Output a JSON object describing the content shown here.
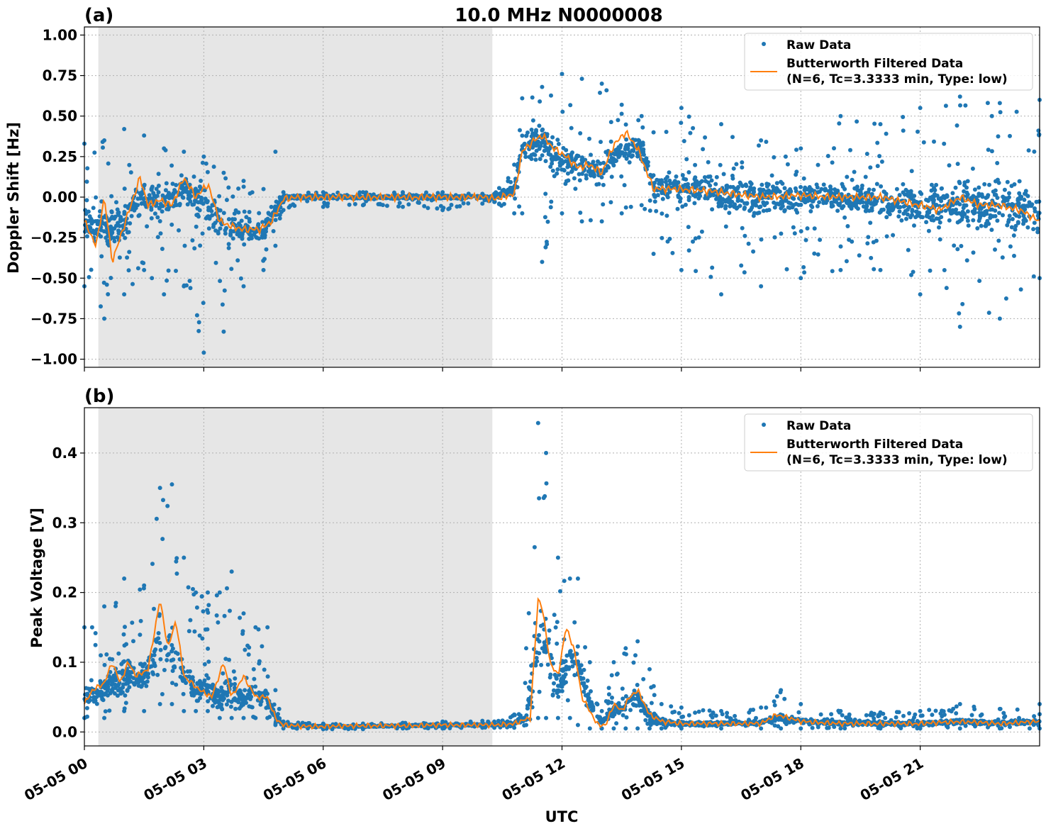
{
  "figure": {
    "title": "10.0 MHz N0000008",
    "xlabel": "UTC",
    "colors": {
      "raw": "#1f77b4",
      "filtered": "#ff7f0e",
      "shade": "#e6e6e6",
      "grid": "#b0b0b0"
    },
    "night_shading_hours": [
      0.35,
      10.25
    ],
    "x_range_hours": [
      0,
      24
    ],
    "x_ticks": [
      {
        "hour": 0,
        "label": "05-05 00"
      },
      {
        "hour": 3,
        "label": "05-05 03"
      },
      {
        "hour": 6,
        "label": "05-05 06"
      },
      {
        "hour": 9,
        "label": "05-05 09"
      },
      {
        "hour": 12,
        "label": "05-05 12"
      },
      {
        "hour": 15,
        "label": "05-05 15"
      },
      {
        "hour": 18,
        "label": "05-05 18"
      },
      {
        "hour": 21,
        "label": "05-05 21"
      }
    ],
    "legend": {
      "raw": "Raw Data",
      "filtered_line1": "Butterworth Filtered Data",
      "filtered_line2": "(N=6, Tc=3.3333 min, Type: low)",
      "placement": "upper right"
    }
  },
  "chart_data": [
    {
      "panel_label": "(a)",
      "type": "scatter",
      "ylabel": "Doppler Shift [Hz]",
      "ylim": [
        -1.05,
        1.05
      ],
      "yticks": [
        "−1.00",
        "−0.75",
        "−0.50",
        "−0.25",
        "0.00",
        "0.25",
        "0.50",
        "0.75",
        "1.00"
      ],
      "ytick_values": [
        -1.0,
        -0.75,
        -0.5,
        -0.25,
        0.0,
        0.25,
        0.5,
        0.75,
        1.0
      ],
      "grid": true,
      "series": [
        {
          "name": "Raw Data",
          "style": "points",
          "x_hours": [
            0,
            0.5,
            1,
            1.5,
            2,
            2.5,
            3,
            3.5,
            4,
            4.5,
            4.8,
            5,
            6,
            7,
            8,
            9,
            10,
            10.3,
            10.8,
            11,
            11.5,
            12,
            12.5,
            13,
            13.5,
            14,
            14.3,
            15,
            16,
            17,
            18,
            19,
            20,
            21,
            22,
            23,
            24
          ],
          "y_center": [
            -0.15,
            -0.2,
            -0.15,
            0.0,
            -0.05,
            0.05,
            0.0,
            -0.2,
            -0.2,
            -0.2,
            -0.1,
            0.0,
            0.0,
            0.0,
            0.0,
            0.0,
            0.0,
            0.0,
            0.05,
            0.3,
            0.35,
            0.2,
            0.2,
            0.15,
            0.3,
            0.3,
            0.05,
            0.05,
            0.03,
            0.0,
            0.0,
            0.0,
            -0.02,
            -0.05,
            -0.05,
            -0.05,
            -0.1
          ],
          "y_min": [
            -0.55,
            -0.75,
            -0.6,
            -0.45,
            -0.6,
            -0.55,
            -0.96,
            -0.83,
            -0.55,
            -0.45,
            -0.3,
            -0.08,
            -0.06,
            -0.05,
            -0.06,
            -0.08,
            -0.04,
            -0.03,
            -0.1,
            -0.1,
            -0.4,
            -0.1,
            -0.15,
            -0.15,
            -0.1,
            -0.05,
            -0.35,
            -0.45,
            -0.6,
            -0.55,
            -0.5,
            -0.45,
            -0.45,
            -0.6,
            -0.8,
            -0.75,
            -0.5
          ],
          "y_max": [
            0.33,
            0.35,
            0.42,
            0.38,
            0.3,
            0.28,
            0.25,
            0.15,
            0.1,
            0.05,
            0.28,
            0.03,
            0.03,
            0.03,
            0.03,
            0.03,
            0.02,
            0.02,
            0.2,
            0.61,
            0.68,
            0.76,
            0.73,
            0.7,
            0.57,
            0.5,
            0.4,
            0.55,
            0.45,
            0.35,
            0.3,
            0.5,
            0.45,
            0.55,
            0.62,
            0.58,
            0.6
          ]
        },
        {
          "name": "Butterworth Filtered Data\n(N=6, Tc=3.3333 min, Type: low)",
          "style": "line",
          "x_hours": [
            0,
            0.3,
            0.5,
            0.7,
            0.9,
            1.1,
            1.4,
            1.6,
            1.9,
            2.2,
            2.5,
            2.8,
            3.1,
            3.4,
            3.7,
            4.0,
            4.4,
            4.7,
            5.0,
            5.5,
            6,
            7,
            8,
            9,
            10,
            10.3,
            10.8,
            11.0,
            11.3,
            11.5,
            11.8,
            12.1,
            12.4,
            12.7,
            13.0,
            13.3,
            13.6,
            13.9,
            14.3,
            15,
            16,
            17,
            18,
            19,
            20,
            21,
            21.5,
            22,
            22.5,
            23,
            23.5,
            24
          ],
          "y": [
            -0.15,
            -0.3,
            0.0,
            -0.4,
            -0.25,
            -0.1,
            0.12,
            -0.05,
            -0.02,
            -0.05,
            0.12,
            0.0,
            0.08,
            -0.15,
            -0.18,
            -0.2,
            -0.2,
            -0.15,
            -0.01,
            0.0,
            0.0,
            0.0,
            0.0,
            0.0,
            0.0,
            -0.01,
            0.02,
            0.28,
            0.35,
            0.38,
            0.3,
            0.25,
            0.18,
            0.2,
            0.15,
            0.32,
            0.4,
            0.3,
            0.05,
            0.05,
            0.03,
            0.0,
            0.01,
            0.0,
            0.0,
            -0.05,
            -0.08,
            0.0,
            -0.05,
            -0.05,
            -0.08,
            -0.15
          ]
        }
      ]
    },
    {
      "panel_label": "(b)",
      "type": "scatter",
      "ylabel": "Peak Voltage [V]",
      "ylim": [
        -0.02,
        0.465
      ],
      "yticks": [
        "0.0",
        "0.1",
        "0.2",
        "0.3",
        "0.4"
      ],
      "ytick_values": [
        0.0,
        0.1,
        0.2,
        0.3,
        0.4
      ],
      "grid": true,
      "series": [
        {
          "name": "Raw Data",
          "style": "points",
          "x_hours": [
            0,
            0.5,
            1,
            1.5,
            1.9,
            2.2,
            2.5,
            2.8,
            3.1,
            3.4,
            3.7,
            4.0,
            4.3,
            4.6,
            4.8,
            5.0,
            6,
            7,
            8,
            9,
            10,
            10.3,
            10.8,
            11.1,
            11.4,
            11.6,
            11.9,
            12.2,
            12.4,
            12.7,
            13.0,
            13.3,
            13.6,
            13.9,
            14.2,
            14.5,
            15,
            16,
            17,
            17.5,
            18,
            19,
            20,
            21,
            22,
            23,
            24
          ],
          "y_center": [
            0.05,
            0.06,
            0.08,
            0.08,
            0.12,
            0.11,
            0.08,
            0.06,
            0.06,
            0.05,
            0.06,
            0.05,
            0.05,
            0.05,
            0.02,
            0.01,
            0.008,
            0.008,
            0.009,
            0.01,
            0.01,
            0.01,
            0.012,
            0.02,
            0.15,
            0.12,
            0.06,
            0.1,
            0.1,
            0.04,
            0.015,
            0.03,
            0.04,
            0.05,
            0.02,
            0.015,
            0.012,
            0.012,
            0.013,
            0.02,
            0.015,
            0.013,
            0.012,
            0.012,
            0.015,
            0.013,
            0.015
          ],
          "y_min": [
            0.02,
            0.02,
            0.03,
            0.03,
            0.04,
            0.04,
            0.03,
            0.03,
            0.03,
            0.02,
            0.02,
            0.02,
            0.02,
            0.02,
            0.01,
            0.005,
            0.004,
            0.004,
            0.005,
            0.005,
            0.006,
            0.006,
            0.006,
            0.01,
            0.02,
            0.02,
            0.02,
            0.02,
            0.01,
            0.005,
            0.005,
            0.005,
            0.005,
            0.005,
            0.005,
            0.005,
            0.005,
            0.005,
            0.005,
            0.005,
            0.005,
            0.005,
            0.005,
            0.005,
            0.005,
            0.005,
            0.005
          ],
          "y_max": [
            0.15,
            0.18,
            0.22,
            0.21,
            0.35,
            0.355,
            0.25,
            0.2,
            0.2,
            0.2,
            0.23,
            0.17,
            0.15,
            0.15,
            0.06,
            0.015,
            0.012,
            0.012,
            0.013,
            0.015,
            0.016,
            0.015,
            0.025,
            0.12,
            0.443,
            0.4,
            0.25,
            0.22,
            0.22,
            0.1,
            0.03,
            0.1,
            0.12,
            0.13,
            0.09,
            0.04,
            0.035,
            0.03,
            0.035,
            0.06,
            0.04,
            0.03,
            0.028,
            0.03,
            0.04,
            0.033,
            0.04
          ]
        },
        {
          "name": "Butterworth Filtered Data\n(N=6, Tc=3.3333 min, Type: low)",
          "style": "line",
          "x_hours": [
            0,
            0.2,
            0.5,
            0.7,
            0.9,
            1.1,
            1.3,
            1.6,
            1.9,
            2.1,
            2.3,
            2.5,
            2.7,
            2.9,
            3.2,
            3.5,
            3.7,
            4.0,
            4.3,
            4.6,
            4.8,
            5.0,
            5.5,
            6,
            7,
            8,
            9,
            10,
            10.3,
            10.8,
            11.2,
            11.4,
            11.5,
            11.7,
            11.9,
            12.1,
            12.3,
            12.5,
            12.7,
            12.9,
            13.1,
            13.3,
            13.5,
            13.7,
            13.9,
            14.2,
            14.5,
            15,
            16,
            17,
            17.4,
            18,
            19,
            20,
            21,
            22,
            23,
            24
          ],
          "y": [
            0.04,
            0.06,
            0.07,
            0.1,
            0.07,
            0.1,
            0.08,
            0.09,
            0.19,
            0.12,
            0.16,
            0.08,
            0.07,
            0.06,
            0.05,
            0.1,
            0.05,
            0.08,
            0.05,
            0.05,
            0.02,
            0.01,
            0.008,
            0.008,
            0.009,
            0.009,
            0.01,
            0.01,
            0.01,
            0.012,
            0.02,
            0.19,
            0.18,
            0.1,
            0.08,
            0.15,
            0.12,
            0.05,
            0.03,
            0.01,
            0.01,
            0.04,
            0.03,
            0.05,
            0.06,
            0.025,
            0.015,
            0.012,
            0.012,
            0.012,
            0.025,
            0.015,
            0.012,
            0.012,
            0.012,
            0.015,
            0.012,
            0.015
          ]
        }
      ]
    }
  ]
}
